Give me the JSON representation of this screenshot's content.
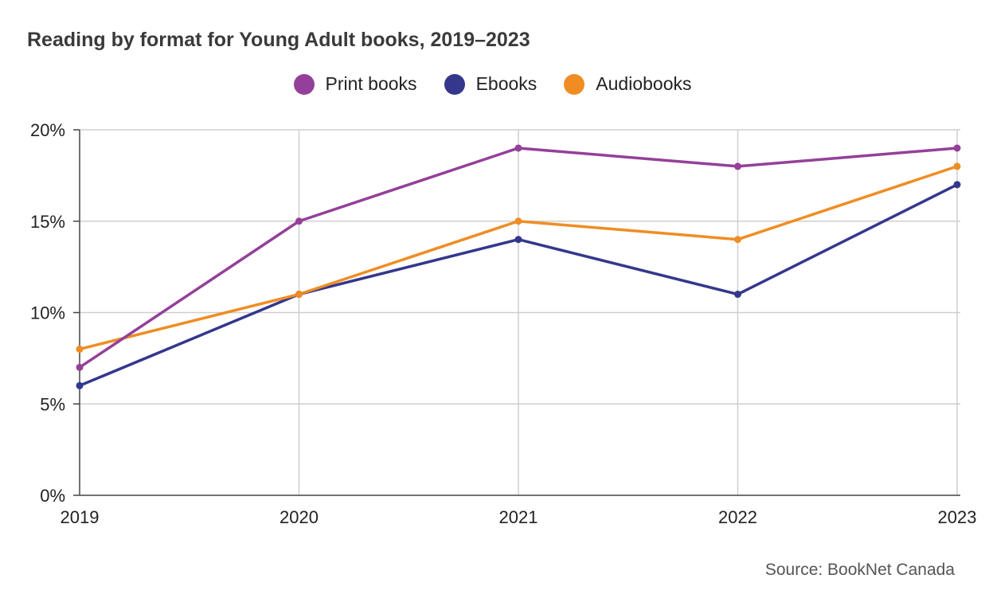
{
  "chart_data": {
    "type": "line",
    "title": "Reading by format for Young Adult books, 2019–2023",
    "x": [
      "2019",
      "2020",
      "2021",
      "2022",
      "2023"
    ],
    "ylim": [
      0,
      20
    ],
    "yticks": [
      "0%",
      "5%",
      "10%",
      "15%",
      "20%"
    ],
    "ytick_values": [
      0,
      5,
      10,
      15,
      20
    ],
    "grid": true,
    "legend_position": "top-center",
    "series": [
      {
        "name": "Print books",
        "color": "#94409a",
        "values": [
          7,
          15,
          19,
          18,
          19
        ]
      },
      {
        "name": "Ebooks",
        "color": "#34378c",
        "values": [
          6,
          11,
          14,
          11,
          17
        ]
      },
      {
        "name": "Audiobooks",
        "color": "#ef8d24",
        "values": [
          8,
          11,
          15,
          14,
          18
        ]
      }
    ]
  },
  "source": "Source: BookNet Canada"
}
